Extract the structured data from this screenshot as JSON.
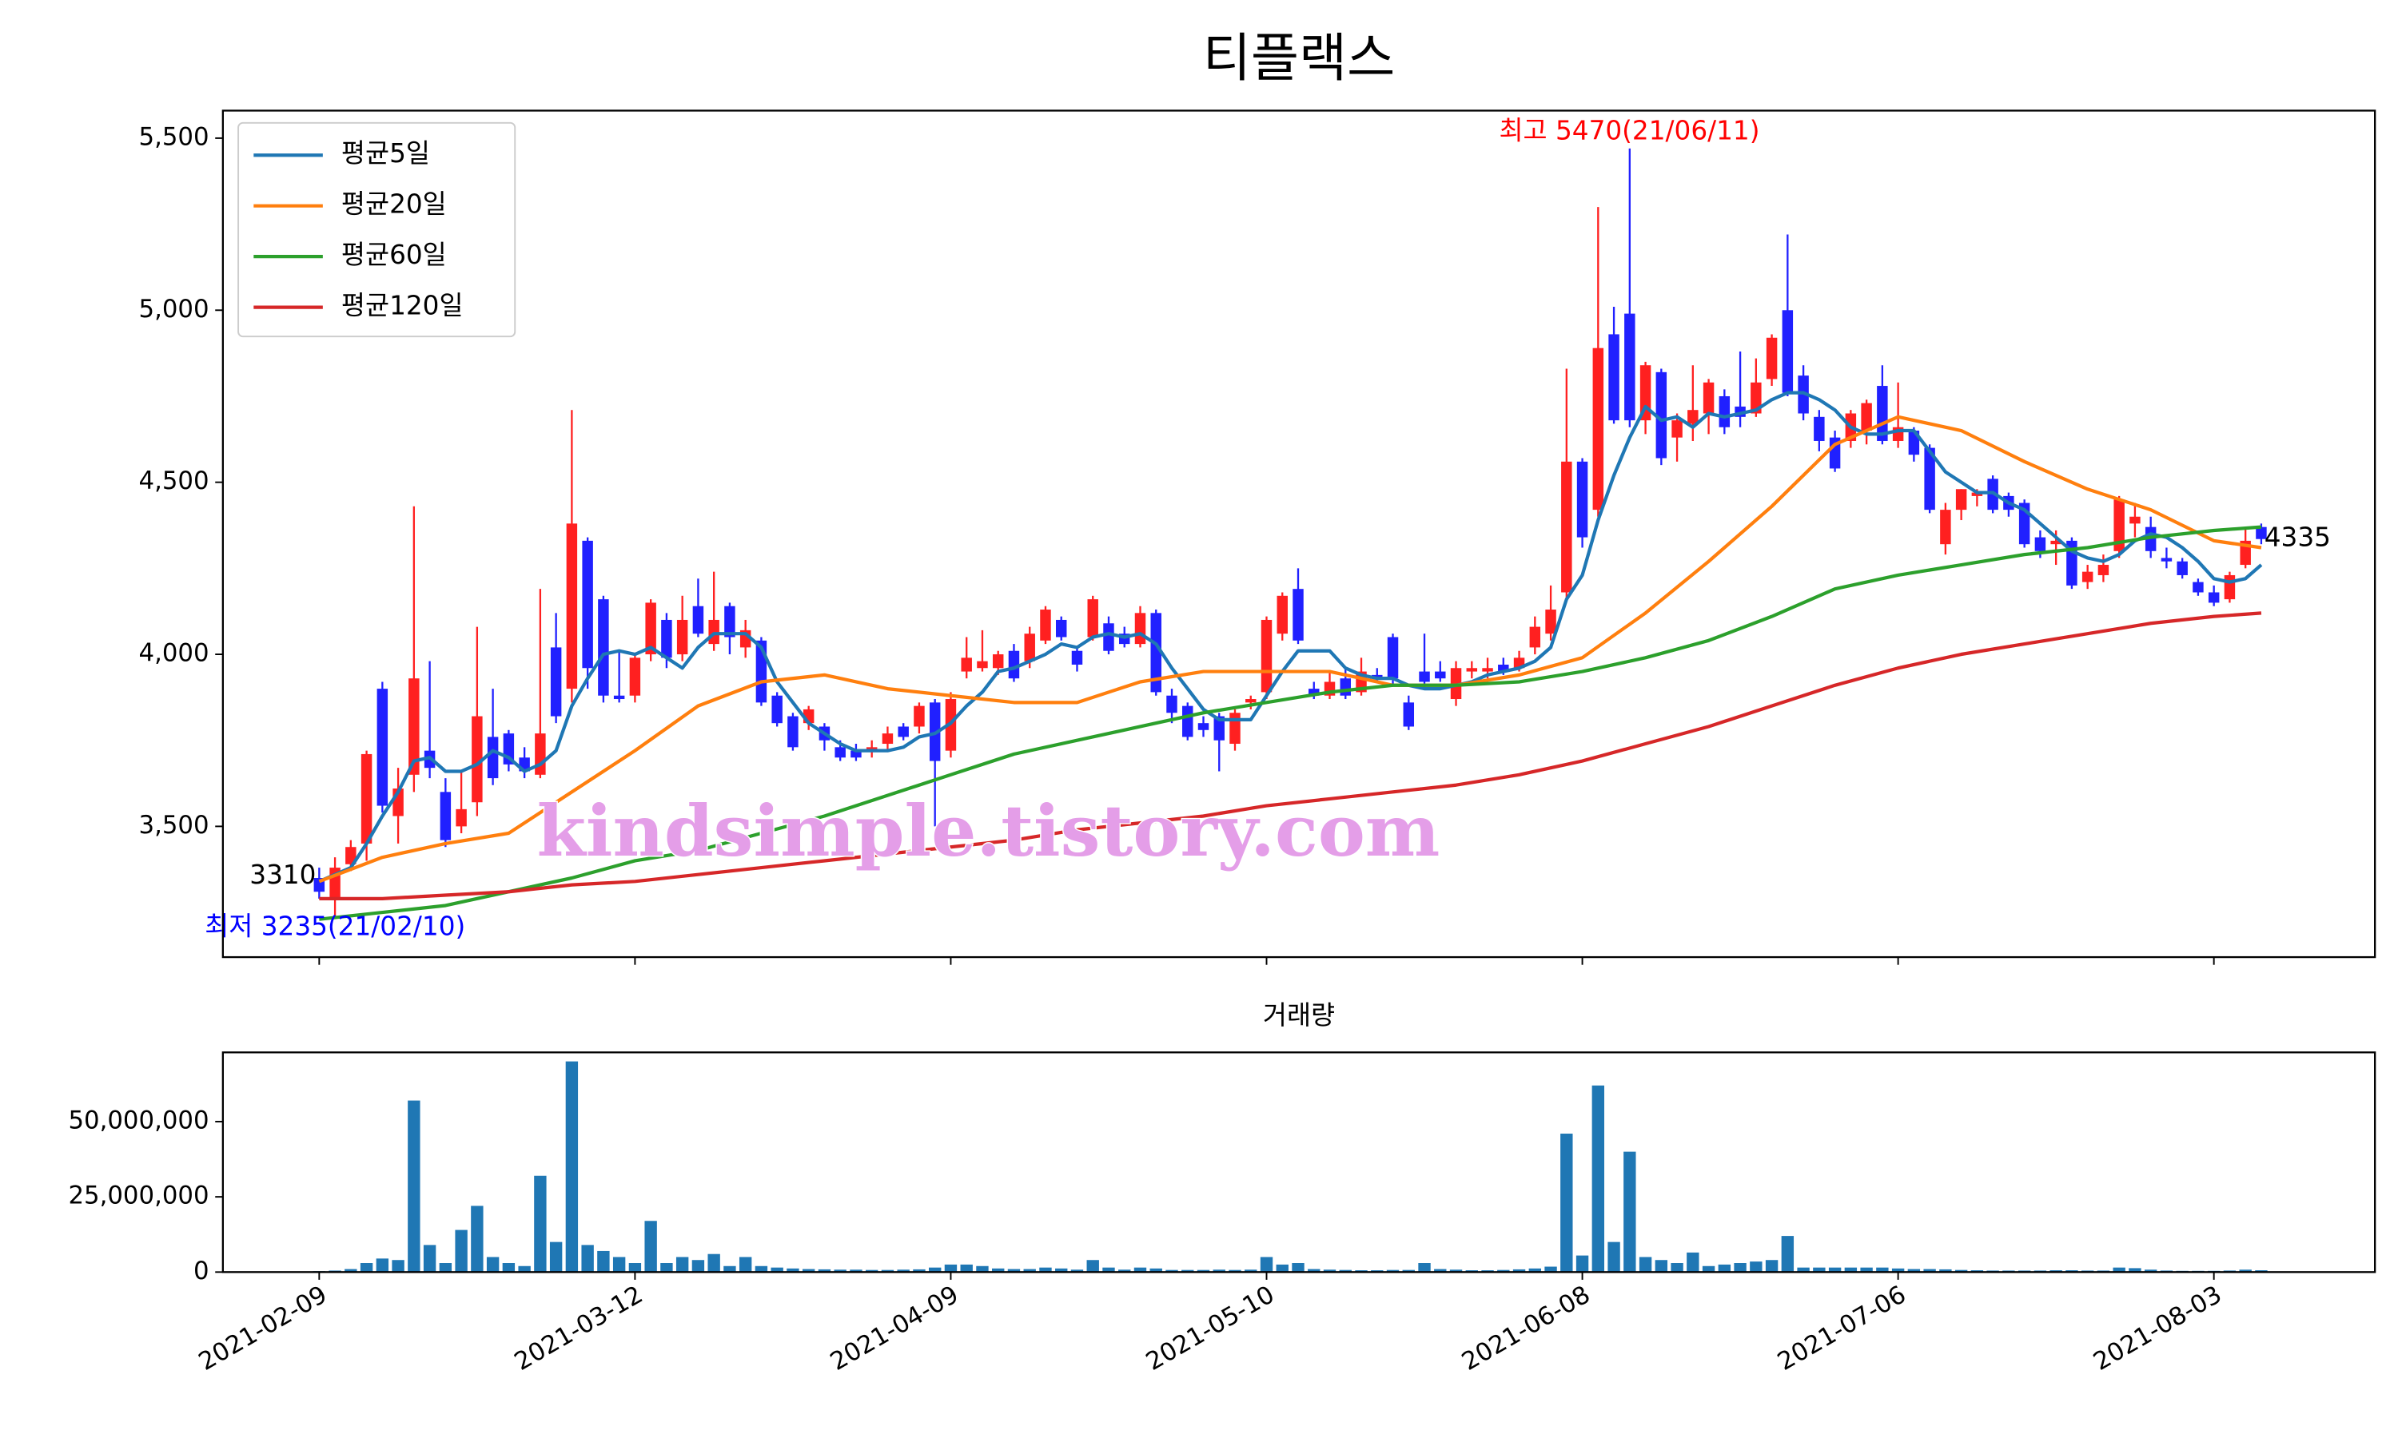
{
  "chart_data": [
    {
      "type": "candlestick",
      "title": "티플랙스",
      "xlim": [
        -6.1,
        130.2
      ],
      "ylim": [
        3120,
        5580
      ],
      "yticks": [
        {
          "value": 3500,
          "label": "3,500"
        },
        {
          "value": 4000,
          "label": "4,000"
        },
        {
          "value": 4500,
          "label": "4,500"
        },
        {
          "value": 5000,
          "label": "5,000"
        },
        {
          "value": 5500,
          "label": "5,500"
        }
      ],
      "up_color": "#ff2020",
      "down_color": "#2020ff",
      "open": [
        3350,
        3290,
        3390,
        3450,
        3900,
        3530,
        3650,
        3720,
        3600,
        3500,
        3570,
        3760,
        3770,
        3700,
        3650,
        4020,
        3900,
        4330,
        4160,
        3880,
        3880,
        4000,
        4100,
        4000,
        4140,
        4030,
        4140,
        4020,
        4040,
        3880,
        3820,
        3800,
        3790,
        3730,
        3720,
        3720,
        3740,
        3790,
        3790,
        3860,
        3720,
        3950,
        3960,
        3960,
        4010,
        3980,
        4040,
        4100,
        4010,
        4050,
        4090,
        4060,
        4030,
        4120,
        3880,
        3850,
        3800,
        3820,
        3740,
        3860,
        3890,
        4060,
        4190,
        3900,
        3880,
        3930,
        3890,
        3940,
        4050,
        3860,
        3950,
        3950,
        3870,
        3950,
        3950,
        3970,
        3960,
        4020,
        4060,
        4180,
        4560,
        4420,
        4930,
        4990,
        4680,
        4820,
        4630,
        4670,
        4700,
        4750,
        4720,
        4700,
        4800,
        5000,
        4810,
        4690,
        4630,
        4620,
        4650,
        4780,
        4620,
        4650,
        4600,
        4320,
        4420,
        4460,
        4510,
        4460,
        4440,
        4340,
        4320,
        4330,
        4210,
        4230,
        4300,
        4380,
        4370,
        4280,
        4270,
        4210,
        4180,
        4160,
        4260,
        4370
      ],
      "high": [
        3380,
        3410,
        3460,
        3720,
        3920,
        3670,
        4430,
        3980,
        3640,
        3660,
        4080,
        3900,
        3780,
        3730,
        4190,
        4120,
        4710,
        4340,
        4170,
        4010,
        4000,
        4160,
        4120,
        4170,
        4220,
        4240,
        4150,
        4100,
        4050,
        3890,
        3830,
        3850,
        3800,
        3750,
        3740,
        3750,
        3790,
        3800,
        3860,
        3870,
        3890,
        4050,
        4070,
        4010,
        4030,
        4080,
        4140,
        4110,
        4020,
        4170,
        4110,
        4080,
        4140,
        4130,
        3900,
        3860,
        3820,
        3830,
        3840,
        3880,
        4110,
        4180,
        4250,
        3920,
        3950,
        3960,
        3990,
        3960,
        4060,
        3880,
        4060,
        3980,
        3980,
        3980,
        3990,
        3990,
        4010,
        4110,
        4200,
        4830,
        4570,
        5300,
        5010,
        5470,
        4850,
        4830,
        4700,
        4840,
        4800,
        4770,
        4880,
        4860,
        4930,
        5220,
        4840,
        4710,
        4650,
        4710,
        4740,
        4840,
        4790,
        4660,
        4610,
        4440,
        4480,
        4480,
        4520,
        4470,
        4450,
        4360,
        4360,
        4340,
        4260,
        4290,
        4460,
        4440,
        4400,
        4310,
        4280,
        4220,
        4200,
        4240,
        4370,
        4380
      ],
      "low": [
        3290,
        3235,
        3370,
        3400,
        3540,
        3450,
        3600,
        3640,
        3440,
        3480,
        3530,
        3620,
        3660,
        3640,
        3640,
        3800,
        3860,
        3900,
        3860,
        3860,
        3860,
        3980,
        3960,
        3980,
        4050,
        4010,
        4000,
        3990,
        3850,
        3790,
        3720,
        3780,
        3720,
        3690,
        3690,
        3700,
        3720,
        3750,
        3770,
        3500,
        3700,
        3930,
        3950,
        3940,
        3920,
        3960,
        4030,
        4040,
        3950,
        4040,
        4000,
        4020,
        4020,
        3880,
        3800,
        3750,
        3760,
        3660,
        3720,
        3840,
        3870,
        4040,
        4030,
        3870,
        3870,
        3870,
        3880,
        3920,
        3910,
        3780,
        3900,
        3920,
        3850,
        3930,
        3930,
        3940,
        3950,
        4000,
        4040,
        4160,
        4310,
        4400,
        4670,
        4660,
        4640,
        4550,
        4560,
        4620,
        4640,
        4640,
        4660,
        4690,
        4780,
        4750,
        4680,
        4590,
        4530,
        4600,
        4610,
        4610,
        4600,
        4560,
        4410,
        4290,
        4390,
        4430,
        4410,
        4400,
        4310,
        4280,
        4260,
        4190,
        4190,
        4210,
        4280,
        4340,
        4280,
        4250,
        4220,
        4170,
        4140,
        4150,
        4250,
        4320
      ],
      "close": [
        3310,
        3380,
        3440,
        3710,
        3560,
        3610,
        3930,
        3670,
        3460,
        3550,
        3820,
        3640,
        3680,
        3660,
        3770,
        3820,
        4380,
        3960,
        3880,
        3870,
        3990,
        4150,
        3990,
        4100,
        4060,
        4100,
        4050,
        4070,
        3860,
        3800,
        3730,
        3840,
        3750,
        3700,
        3700,
        3730,
        3770,
        3760,
        3850,
        3690,
        3870,
        3990,
        3980,
        4000,
        3930,
        4060,
        4130,
        4050,
        3970,
        4160,
        4010,
        4030,
        4120,
        3890,
        3830,
        3760,
        3780,
        3750,
        3830,
        3870,
        4100,
        4170,
        4040,
        3880,
        3920,
        3880,
        3950,
        3930,
        3930,
        3790,
        3920,
        3930,
        3960,
        3960,
        3960,
        3950,
        3990,
        4080,
        4130,
        4560,
        4340,
        4890,
        4680,
        4680,
        4840,
        4570,
        4680,
        4710,
        4790,
        4660,
        4690,
        4790,
        4920,
        4760,
        4700,
        4620,
        4540,
        4700,
        4730,
        4620,
        4660,
        4580,
        4420,
        4420,
        4480,
        4470,
        4420,
        4420,
        4320,
        4300,
        4330,
        4200,
        4240,
        4260,
        4450,
        4400,
        4300,
        4270,
        4230,
        4180,
        4150,
        4230,
        4330,
        4335
      ],
      "series": [
        {
          "name": "평균5일",
          "color": "#1f77b4",
          "values": [
            3340,
            3360,
            3380,
            3450,
            3530,
            3600,
            3690,
            3700,
            3660,
            3660,
            3680,
            3720,
            3700,
            3660,
            3680,
            3720,
            3850,
            3930,
            4000,
            4010,
            4000,
            4020,
            3990,
            3960,
            4020,
            4060,
            4060,
            4060,
            4020,
            3920,
            3860,
            3800,
            3770,
            3740,
            3720,
            3720,
            3720,
            3730,
            3760,
            3770,
            3800,
            3850,
            3890,
            3950,
            3960,
            3980,
            4000,
            4030,
            4020,
            4050,
            4060,
            4050,
            4060,
            4030,
            3960,
            3900,
            3840,
            3810,
            3810,
            3810,
            3880,
            3950,
            4010,
            4010,
            4010,
            3960,
            3940,
            3930,
            3930,
            3910,
            3900,
            3900,
            3910,
            3920,
            3940,
            3950,
            3960,
            3980,
            4020,
            4160,
            4230,
            4390,
            4520,
            4630,
            4720,
            4680,
            4690,
            4660,
            4700,
            4690,
            4700,
            4710,
            4740,
            4760,
            4760,
            4740,
            4710,
            4660,
            4640,
            4640,
            4650,
            4650,
            4590,
            4530,
            4500,
            4470,
            4470,
            4440,
            4420,
            4380,
            4340,
            4300,
            4280,
            4270,
            4290,
            4330,
            4350,
            4340,
            4310,
            4270,
            4220,
            4210,
            4220,
            4260
          ]
        },
        {
          "name": "평균20일",
          "color": "#ff7f0e",
          "x": [
            0,
            4,
            8,
            12,
            16,
            20,
            24,
            28,
            32,
            36,
            40,
            44,
            48,
            52,
            56,
            60,
            64,
            68,
            72,
            76,
            80,
            84,
            88,
            92,
            96,
            100,
            104,
            108,
            112,
            116,
            120,
            123
          ],
          "values": [
            3340,
            3410,
            3450,
            3480,
            3600,
            3720,
            3850,
            3920,
            3940,
            3900,
            3880,
            3860,
            3860,
            3920,
            3950,
            3950,
            3950,
            3910,
            3910,
            3940,
            3990,
            4120,
            4270,
            4430,
            4610,
            4690,
            4650,
            4560,
            4480,
            4420,
            4330,
            4310
          ]
        },
        {
          "name": "평균60일",
          "color": "#2ca02c",
          "x": [
            0,
            4,
            8,
            12,
            16,
            20,
            24,
            28,
            32,
            36,
            40,
            44,
            48,
            52,
            56,
            60,
            64,
            68,
            72,
            76,
            80,
            84,
            88,
            92,
            96,
            100,
            104,
            108,
            112,
            116,
            120,
            123
          ],
          "values": [
            3230,
            3250,
            3270,
            3310,
            3350,
            3400,
            3430,
            3480,
            3530,
            3590,
            3650,
            3710,
            3750,
            3790,
            3830,
            3860,
            3890,
            3910,
            3910,
            3920,
            3950,
            3990,
            4040,
            4110,
            4190,
            4230,
            4260,
            4290,
            4310,
            4340,
            4360,
            4370
          ]
        },
        {
          "name": "평균120일",
          "color": "#d62728",
          "x": [
            0,
            4,
            8,
            12,
            16,
            20,
            24,
            28,
            32,
            36,
            40,
            44,
            48,
            52,
            56,
            60,
            64,
            68,
            72,
            76,
            80,
            84,
            88,
            92,
            96,
            100,
            104,
            108,
            112,
            116,
            120,
            123
          ],
          "values": [
            3290,
            3290,
            3300,
            3310,
            3330,
            3340,
            3360,
            3380,
            3400,
            3420,
            3440,
            3460,
            3490,
            3510,
            3530,
            3560,
            3580,
            3600,
            3620,
            3650,
            3690,
            3740,
            3790,
            3850,
            3910,
            3960,
            4000,
            4030,
            4060,
            4090,
            4110,
            4120
          ]
        }
      ],
      "legend": "upper left",
      "annotations": [
        {
          "text": "최고 5470(21/06/11)",
          "color": "#ff0000"
        },
        {
          "text": "최저 3235(21/02/10)",
          "color": "#0000ff"
        }
      ],
      "end_labels": [
        3310,
        4335
      ],
      "watermark": "kindsimple.tistory.com",
      "watermark_color": "#e49ee8"
    },
    {
      "type": "bar",
      "title": "거래량",
      "color": "#1f77b4",
      "xlim": [
        -6.1,
        130.2
      ],
      "ylim": [
        0,
        73000000
      ],
      "yticks": [
        0,
        {
          "value": 25000000,
          "label": "25,000,000"
        },
        {
          "value": 50000000,
          "label": "50,000,000"
        }
      ],
      "categories": [
        "2021-02-09",
        null,
        null,
        null,
        null,
        null,
        null,
        null,
        null,
        null,
        null,
        null,
        null,
        null,
        null,
        null,
        null,
        null,
        null,
        null,
        "2021-03-12",
        null,
        null,
        null,
        null,
        null,
        null,
        null,
        null,
        null,
        null,
        null,
        null,
        null,
        null,
        null,
        null,
        null,
        null,
        null,
        "2021-04-09",
        null,
        null,
        null,
        null,
        null,
        null,
        null,
        null,
        null,
        null,
        null,
        null,
        null,
        null,
        null,
        null,
        null,
        null,
        null,
        "2021-05-10",
        null,
        null,
        null,
        null,
        null,
        null,
        null,
        null,
        null,
        null,
        null,
        null,
        null,
        null,
        null,
        null,
        null,
        null,
        null,
        "2021-06-08",
        null,
        null,
        null,
        null,
        null,
        null,
        null,
        null,
        null,
        null,
        null,
        null,
        null,
        null,
        null,
        null,
        null,
        null,
        null,
        "2021-07-06",
        null,
        null,
        null,
        null,
        null,
        null,
        null,
        null,
        null,
        null,
        null,
        null,
        null,
        null,
        null,
        null,
        null,
        null,
        null,
        "2021-08-03",
        null,
        null,
        null
      ],
      "values": [
        300000,
        500000,
        1000000,
        3000000,
        4500000,
        4000000,
        57000000,
        9000000,
        3000000,
        14000000,
        22000000,
        5000000,
        3000000,
        2000000,
        32000000,
        10000000,
        70000000,
        9000000,
        7000000,
        5000000,
        3000000,
        17000000,
        3000000,
        5000000,
        4000000,
        6000000,
        2000000,
        5000000,
        2000000,
        1500000,
        1200000,
        1000000,
        900000,
        800000,
        800000,
        700000,
        700000,
        800000,
        900000,
        1500000,
        2500000,
        2500000,
        2000000,
        1200000,
        1000000,
        1000000,
        1500000,
        1200000,
        800000,
        4000000,
        1500000,
        800000,
        1500000,
        1200000,
        700000,
        700000,
        700000,
        800000,
        700000,
        800000,
        5000000,
        2500000,
        3000000,
        1000000,
        800000,
        700000,
        600000,
        600000,
        700000,
        700000,
        3000000,
        1000000,
        800000,
        600000,
        600000,
        700000,
        900000,
        1200000,
        1800000,
        46000000,
        5500000,
        62000000,
        10000000,
        40000000,
        5000000,
        4000000,
        3000000,
        6500000,
        2000000,
        2500000,
        3000000,
        3500000,
        4000000,
        12000000,
        1500000,
        1500000,
        1500000,
        1500000,
        1500000,
        1500000,
        1200000,
        1000000,
        1000000,
        900000,
        700000,
        600000,
        500000,
        500000,
        500000,
        500000,
        600000,
        600000,
        500000,
        500000,
        1500000,
        1300000,
        800000,
        500000,
        400000,
        400000,
        400000,
        500000,
        800000,
        600000
      ]
    }
  ]
}
